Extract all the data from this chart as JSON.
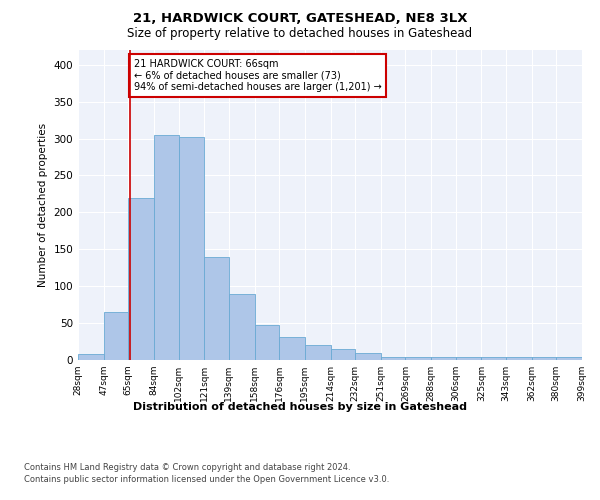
{
  "title1": "21, HARDWICK COURT, GATESHEAD, NE8 3LX",
  "title2": "Size of property relative to detached houses in Gateshead",
  "xlabel": "Distribution of detached houses by size in Gateshead",
  "ylabel": "Number of detached properties",
  "bar_heights": [
    8,
    65,
    220,
    305,
    302,
    140,
    90,
    47,
    31,
    20,
    15,
    10,
    4,
    4,
    4,
    4,
    4,
    4,
    4,
    4
  ],
  "property_line_x": 66,
  "bin_edges": [
    28,
    47,
    65,
    84,
    102,
    121,
    139,
    158,
    176,
    195,
    214,
    232,
    251,
    269,
    288,
    306,
    325,
    343,
    362,
    380,
    399
  ],
  "bar_color": "#aec6e8",
  "bar_edge_color": "#6aaad4",
  "line_color": "#cc0000",
  "annotation_text": "21 HARDWICK COURT: 66sqm\n← 6% of detached houses are smaller (73)\n94% of semi-detached houses are larger (1,201) →",
  "annotation_box_color": "#ffffff",
  "annotation_border_color": "#cc0000",
  "footer1": "Contains HM Land Registry data © Crown copyright and database right 2024.",
  "footer2": "Contains public sector information licensed under the Open Government Licence v3.0.",
  "ylim": [
    0,
    420
  ],
  "background_color": "#eef2fa"
}
